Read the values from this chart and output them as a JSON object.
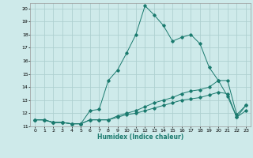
{
  "xlabel": "Humidex (Indice chaleur)",
  "bg_color": "#ceeaea",
  "line_color": "#1a7a6e",
  "grid_color": "#aed0d0",
  "xlim": [
    -0.5,
    23.5
  ],
  "ylim": [
    11,
    20.4
  ],
  "yticks": [
    11,
    12,
    13,
    14,
    15,
    16,
    17,
    18,
    19,
    20
  ],
  "xticks": [
    0,
    1,
    2,
    3,
    4,
    5,
    6,
    7,
    8,
    9,
    10,
    11,
    12,
    13,
    14,
    15,
    16,
    17,
    18,
    19,
    20,
    21,
    22,
    23
  ],
  "line1_x": [
    0,
    1,
    2,
    3,
    4,
    5,
    6,
    7,
    8,
    9,
    10,
    11,
    12,
    13,
    14,
    15,
    16,
    17,
    18,
    19,
    20,
    21,
    22,
    23
  ],
  "line1_y": [
    11.5,
    11.5,
    11.3,
    11.3,
    11.2,
    11.2,
    12.2,
    12.3,
    14.5,
    15.3,
    16.6,
    18.0,
    20.2,
    19.5,
    18.7,
    17.5,
    17.8,
    18.0,
    17.3,
    15.5,
    14.5,
    13.3,
    11.7,
    12.6
  ],
  "line2_x": [
    0,
    1,
    2,
    3,
    4,
    5,
    6,
    7,
    8,
    9,
    10,
    11,
    12,
    13,
    14,
    15,
    16,
    17,
    18,
    19,
    20,
    21,
    22,
    23
  ],
  "line2_y": [
    11.5,
    11.5,
    11.3,
    11.3,
    11.2,
    11.2,
    11.5,
    11.5,
    11.5,
    11.8,
    12.0,
    12.2,
    12.5,
    12.8,
    13.0,
    13.2,
    13.5,
    13.7,
    13.8,
    14.0,
    14.5,
    14.5,
    11.9,
    12.6
  ],
  "line3_x": [
    0,
    1,
    2,
    3,
    4,
    5,
    6,
    7,
    8,
    9,
    10,
    11,
    12,
    13,
    14,
    15,
    16,
    17,
    18,
    19,
    20,
    21,
    22,
    23
  ],
  "line3_y": [
    11.5,
    11.5,
    11.3,
    11.3,
    11.2,
    11.2,
    11.5,
    11.5,
    11.5,
    11.7,
    11.9,
    12.0,
    12.2,
    12.4,
    12.6,
    12.8,
    13.0,
    13.1,
    13.2,
    13.4,
    13.6,
    13.5,
    11.7,
    12.2
  ]
}
